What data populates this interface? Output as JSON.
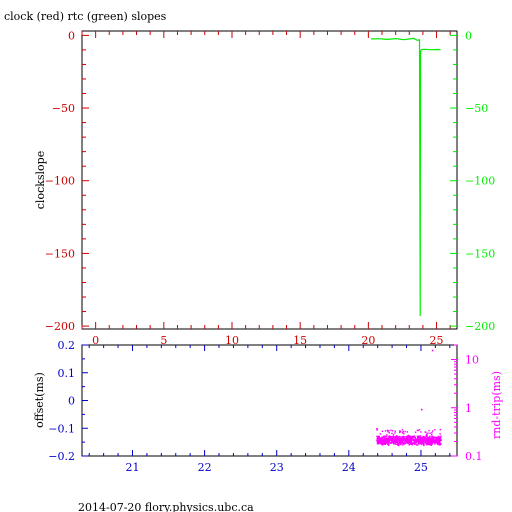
{
  "title": "clock (red) rtc (green) slopes",
  "footer": "2014-07-20 flory.physics.ubc.ca",
  "colors": {
    "clock": "#cc0000",
    "rtc": "#00ee00",
    "offset": "#0000cc",
    "roundtrip": "#ff00ff",
    "frame": "#000000"
  },
  "chart_data": [
    {
      "type": "line",
      "panel": "slopes",
      "title": "clock (red) rtc (green) slopes",
      "ylabel": "clockslope",
      "xlim": [
        -1,
        26.5
      ],
      "ylim": [
        -202,
        3
      ],
      "y2lim": [
        -202,
        3
      ],
      "x_ticks": [
        0,
        5,
        10,
        15,
        20,
        25
      ],
      "y_ticks": [
        0,
        -50,
        -100,
        -150,
        -200
      ],
      "y2_ticks": [
        0,
        -50,
        -100,
        -150,
        -200
      ],
      "series": [
        {
          "color": "green",
          "x": [
            20.2,
            20.8,
            21.4,
            22.0,
            22.6,
            23.0,
            23.3,
            23.6,
            23.75,
            23.8,
            23.82,
            23.85,
            23.9,
            24.2,
            24.6,
            25.0,
            25.3
          ],
          "y": [
            -2.5,
            -2.3,
            -2.8,
            -2.2,
            -3.0,
            -2.5,
            -2.0,
            -3.5,
            -3.0,
            -193,
            -10.8,
            -10.2,
            -9.8,
            -9.6,
            -9.9,
            -9.7,
            -9.8
          ]
        }
      ]
    },
    {
      "type": "scatter",
      "panel": "offset",
      "ylabel": "offset(ms)",
      "y2label": "rnd-trip(ms)",
      "xlim": [
        20.3,
        25.5
      ],
      "ylim": [
        -0.2,
        0.2
      ],
      "y2lim": [
        0.1,
        20
      ],
      "y2_scale": "log",
      "x_ticks": [
        21,
        22,
        23,
        24,
        25
      ],
      "y_ticks": [
        0.2,
        0.1,
        0,
        -0.1,
        -0.2
      ],
      "y_tick_labels": [
        "0.2",
        "0.1",
        "0",
        "-0.1",
        "-0.2"
      ],
      "y2_ticks": [
        10,
        1,
        0.1
      ],
      "y2_tick_labels": [
        "10",
        "1",
        "0.1"
      ],
      "series": [
        {
          "color": "magenta",
          "axis": "right",
          "x_range": [
            24.38,
            25.27
          ],
          "typical_range": [
            0.17,
            0.28
          ],
          "sample_x": [
            24.4,
            24.6,
            24.8,
            25.0,
            25.2
          ],
          "sample_y": [
            0.2,
            0.21,
            0.22,
            0.2,
            0.21
          ],
          "outliers": [
            {
              "x": 24.38,
              "y": 0.38
            },
            {
              "x": 25.0,
              "y": 0.95
            },
            {
              "x": 25.15,
              "y": 16
            }
          ]
        }
      ]
    }
  ]
}
